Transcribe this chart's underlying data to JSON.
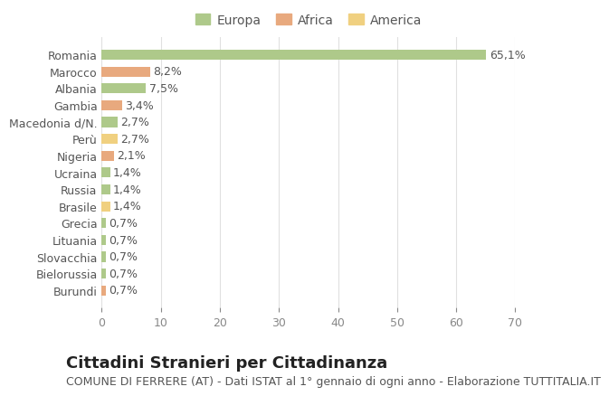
{
  "countries": [
    "Romania",
    "Marocco",
    "Albania",
    "Gambia",
    "Macedonia d/N.",
    "Perù",
    "Nigeria",
    "Ucraina",
    "Russia",
    "Brasile",
    "Grecia",
    "Lituania",
    "Slovacchia",
    "Bielorussia",
    "Burundi"
  ],
  "values": [
    65.1,
    8.2,
    7.5,
    3.4,
    2.7,
    2.7,
    2.1,
    1.4,
    1.4,
    1.4,
    0.7,
    0.7,
    0.7,
    0.7,
    0.7
  ],
  "labels": [
    "65,1%",
    "8,2%",
    "7,5%",
    "3,4%",
    "2,7%",
    "2,7%",
    "2,1%",
    "1,4%",
    "1,4%",
    "1,4%",
    "0,7%",
    "0,7%",
    "0,7%",
    "0,7%",
    "0,7%"
  ],
  "categories": [
    "Europa",
    "Africa",
    "America"
  ],
  "continent": [
    "Europa",
    "Africa",
    "Europa",
    "Africa",
    "Europa",
    "America",
    "Africa",
    "Europa",
    "Europa",
    "America",
    "Europa",
    "Europa",
    "Europa",
    "Europa",
    "Africa"
  ],
  "colors": {
    "Europa": "#aec98a",
    "Africa": "#e8a97e",
    "America": "#f0d080"
  },
  "legend_colors": {
    "Europa": "#aec98a",
    "Africa": "#e8a97e",
    "America": "#f0d080"
  },
  "xlim": [
    0,
    70
  ],
  "xticks": [
    0,
    10,
    20,
    30,
    40,
    50,
    60,
    70
  ],
  "title": "Cittadini Stranieri per Cittadinanza",
  "subtitle": "COMUNE DI FERRERE (AT) - Dati ISTAT al 1° gennaio di ogni anno - Elaborazione TUTTITALIA.IT",
  "bg_color": "#ffffff",
  "grid_color": "#e0e0e0",
  "bar_height": 0.6,
  "label_fontsize": 9,
  "title_fontsize": 13,
  "subtitle_fontsize": 9,
  "tick_fontsize": 9,
  "legend_fontsize": 10
}
